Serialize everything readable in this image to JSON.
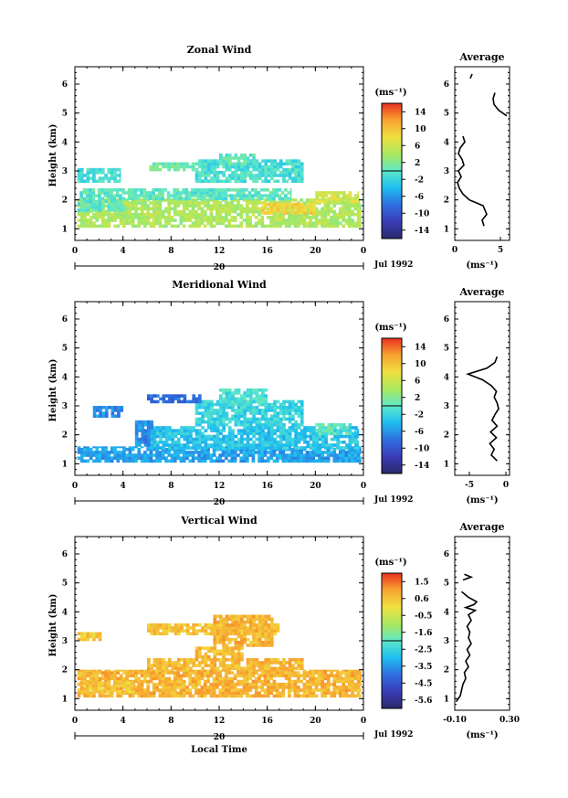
{
  "figure": {
    "date_label": "Jul 1992",
    "xlabel_bottom": "Local Time",
    "day_label": "20"
  },
  "chart_data": [
    {
      "type": "heatmap",
      "title": "Zonal Wind",
      "ylabel": "Height (km)",
      "xlim": [
        0,
        24
      ],
      "ylim": [
        0.6,
        6.6
      ],
      "xticks": [
        "0",
        "4",
        "8",
        "12",
        "16",
        "20",
        "0"
      ],
      "yticks": [
        "1",
        "2",
        "3",
        "4",
        "5",
        "6"
      ],
      "colorbar": {
        "unit": "(ms⁻¹)",
        "range": [
          -15,
          15
        ],
        "ticks": [
          "14",
          "10",
          "6",
          "2",
          "-2",
          "-6",
          "-10",
          "-14"
        ]
      },
      "regions": [
        {
          "x0": 0.2,
          "x1": 23.8,
          "y0": 1.05,
          "y1": 2.05,
          "value": 4
        },
        {
          "x0": 0.4,
          "x1": 18,
          "y0": 2.0,
          "y1": 2.4,
          "value": 0
        },
        {
          "x0": 20,
          "x1": 23.6,
          "y0": 1.9,
          "y1": 2.3,
          "value": 6
        },
        {
          "x0": 0.2,
          "x1": 4.2,
          "y0": 1.6,
          "y1": 2.0,
          "value": 0
        },
        {
          "x0": 0.2,
          "x1": 3.8,
          "y0": 2.6,
          "y1": 3.1,
          "value": -1
        },
        {
          "x0": 10,
          "x1": 19,
          "y0": 2.6,
          "y1": 3.4,
          "value": -1
        },
        {
          "x0": 12,
          "x1": 15,
          "y0": 3.2,
          "y1": 3.6,
          "value": 0
        },
        {
          "x0": 6.2,
          "x1": 10,
          "y0": 3.0,
          "y1": 3.3,
          "value": 1
        },
        {
          "x0": 15.5,
          "x1": 20,
          "y0": 1.5,
          "y1": 1.9,
          "value": 8
        }
      ],
      "avg_profile": {
        "xlabel": "(ms⁻¹)",
        "xlim": [
          0,
          6
        ],
        "xticks": [
          "0",
          "5"
        ],
        "height": [
          1.1,
          1.3,
          1.5,
          1.8,
          2.0,
          2.2,
          2.4,
          2.6,
          2.8,
          3.0,
          3.2,
          3.4,
          3.6,
          3.8,
          4.0,
          4.2
        ],
        "value": [
          3.2,
          3.0,
          3.5,
          3.1,
          1.6,
          0.9,
          0.5,
          0.3,
          0.7,
          0.4,
          1.0,
          0.8,
          0.4,
          0.6,
          1.1,
          0.9
        ],
        "upper_height": [
          4.9,
          5.1,
          5.3,
          5.5,
          5.7
        ],
        "upper_value": [
          5.7,
          4.8,
          4.3,
          4.2,
          4.4
        ],
        "extra_height": [
          6.2,
          6.35
        ],
        "extra_value": [
          1.7,
          1.9
        ]
      }
    },
    {
      "type": "heatmap",
      "title": "Meridional Wind",
      "ylabel": "Height (km)",
      "xlim": [
        0,
        24
      ],
      "ylim": [
        0.6,
        6.6
      ],
      "xticks": [
        "0",
        "4",
        "8",
        "12",
        "16",
        "20",
        "0"
      ],
      "yticks": [
        "1",
        "2",
        "3",
        "4",
        "5",
        "6"
      ],
      "colorbar": {
        "unit": "(ms⁻¹)",
        "range": [
          -15,
          15
        ],
        "ticks": [
          "14",
          "10",
          "6",
          "2",
          "-2",
          "-6",
          "-10",
          "-14"
        ]
      },
      "regions": [
        {
          "x0": 0.2,
          "x1": 23.8,
          "y0": 1.05,
          "y1": 1.6,
          "value": -5
        },
        {
          "x0": 6,
          "x1": 23.6,
          "y0": 1.5,
          "y1": 2.3,
          "value": -3
        },
        {
          "x0": 5,
          "x1": 6.5,
          "y0": 1.6,
          "y1": 2.5,
          "value": -6
        },
        {
          "x0": 10,
          "x1": 19,
          "y0": 2.3,
          "y1": 3.2,
          "value": -2
        },
        {
          "x0": 12,
          "x1": 16,
          "y0": 3.0,
          "y1": 3.6,
          "value": -1
        },
        {
          "x0": 6,
          "x1": 10.5,
          "y0": 3.1,
          "y1": 3.4,
          "value": -8
        },
        {
          "x0": 1.5,
          "x1": 4,
          "y0": 2.6,
          "y1": 3.0,
          "value": -6
        },
        {
          "x0": 20,
          "x1": 23,
          "y0": 2.0,
          "y1": 2.4,
          "value": 0
        }
      ],
      "avg_profile": {
        "xlabel": "(ms⁻¹)",
        "xlim": [
          -7,
          0.5
        ],
        "xticks": [
          "-5",
          "0"
        ],
        "height": [
          1.1,
          1.3,
          1.5,
          1.7,
          1.9,
          2.1,
          2.3,
          2.5,
          2.7,
          2.9,
          3.1,
          3.3,
          3.5,
          3.7,
          3.9,
          4.1,
          4.3,
          4.5,
          4.7
        ],
        "value": [
          -1.2,
          -2.0,
          -1.6,
          -2.2,
          -1.3,
          -2.1,
          -1.2,
          -1.9,
          -1.5,
          -1.0,
          -1.2,
          -1.6,
          -1.3,
          -2.0,
          -3.2,
          -5.2,
          -2.6,
          -1.5,
          -1.2
        ]
      }
    },
    {
      "type": "heatmap",
      "title": "Vertical Wind",
      "ylabel": "Height (km)",
      "xlabel": "Local Time",
      "xlim": [
        0,
        24
      ],
      "ylim": [
        0.6,
        6.6
      ],
      "xticks": [
        "0",
        "4",
        "8",
        "12",
        "16",
        "20",
        "0"
      ],
      "yticks": [
        "1",
        "2",
        "3",
        "4",
        "5",
        "6"
      ],
      "colorbar": {
        "unit": "(ms⁻¹)",
        "range": [
          -6,
          2
        ],
        "ticks": [
          "1.5",
          "0.6",
          "-0.5",
          "-1.6",
          "-2.5",
          "-3.5",
          "-4.5",
          "-5.6"
        ]
      },
      "regions": [
        {
          "x0": 0.2,
          "x1": 23.8,
          "y0": 1.05,
          "y1": 2.0,
          "value": 0.7
        },
        {
          "x0": 6,
          "x1": 19,
          "y0": 2.0,
          "y1": 2.4,
          "value": 0.6
        },
        {
          "x0": 0.4,
          "x1": 5,
          "y0": 1.2,
          "y1": 1.6,
          "value": 0.4
        },
        {
          "x0": 0.2,
          "x1": 2.2,
          "y0": 3.0,
          "y1": 3.3,
          "value": 0.4
        },
        {
          "x0": 6,
          "x1": 17,
          "y0": 3.2,
          "y1": 3.6,
          "value": 0.5
        },
        {
          "x0": 11.5,
          "x1": 16.5,
          "y0": 2.8,
          "y1": 3.9,
          "value": 0.7
        },
        {
          "x0": 10,
          "x1": 14,
          "y0": 2.4,
          "y1": 2.8,
          "value": 0.6
        }
      ],
      "avg_profile": {
        "xlabel": "(ms⁻¹)",
        "xlim": [
          -0.1,
          0.3
        ],
        "xticks": [
          "-0.10",
          "0.30"
        ],
        "height": [
          0.9,
          1.1,
          1.3,
          1.5,
          1.7,
          1.9,
          2.1,
          2.3,
          2.5,
          2.7,
          2.9,
          3.1,
          3.3,
          3.5,
          3.7,
          3.9,
          4.05,
          4.15,
          4.25,
          4.35,
          4.5,
          4.7
        ],
        "value": [
          -0.09,
          -0.06,
          -0.05,
          -0.04,
          -0.02,
          -0.03,
          0.0,
          -0.02,
          0.01,
          -0.01,
          0.02,
          0.0,
          0.01,
          -0.01,
          0.02,
          0.0,
          0.05,
          -0.02,
          0.04,
          0.06,
          0.0,
          -0.05
        ],
        "upper_height": [
          5.1,
          5.2,
          5.3
        ],
        "upper_value": [
          -0.04,
          0.02,
          -0.03
        ]
      }
    }
  ]
}
